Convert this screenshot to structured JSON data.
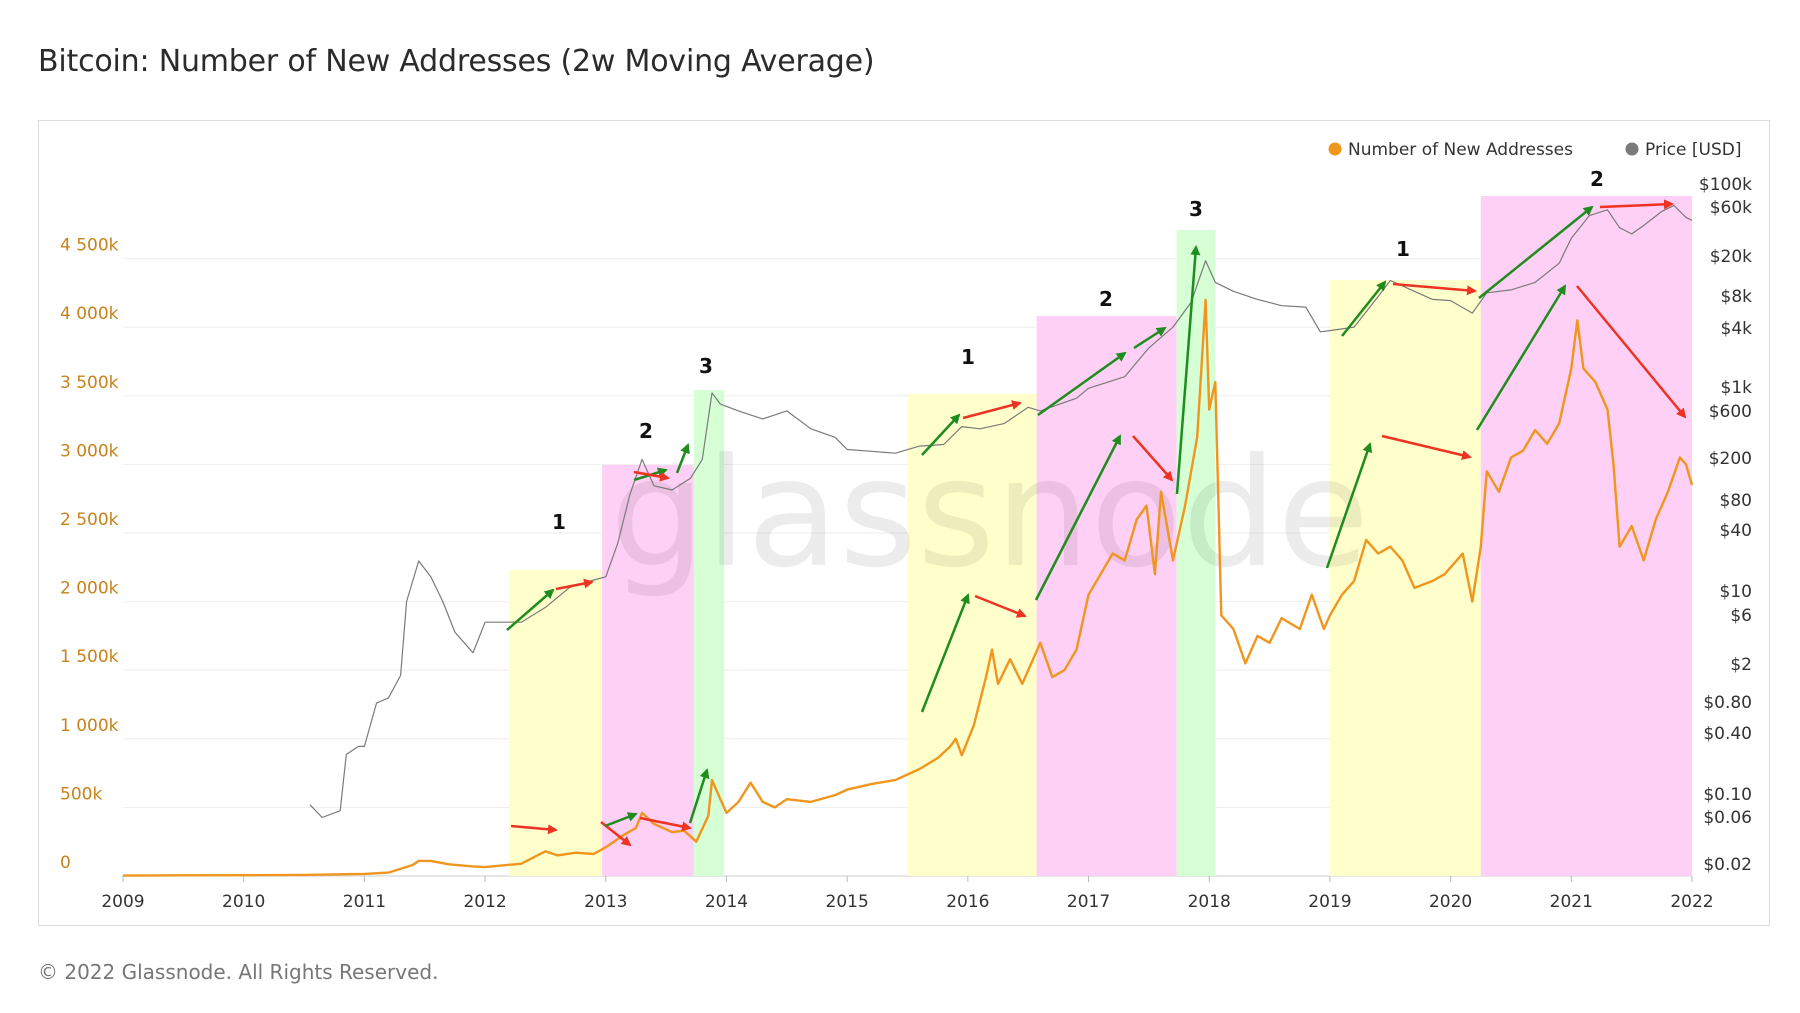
{
  "title": "Bitcoin: Number of New Addresses (2w Moving Average)",
  "footer": "© 2022 Glassnode. All Rights Reserved.",
  "watermark": "glassnode",
  "colors": {
    "addresses": "#f0961e",
    "price": "#7a7a7a",
    "left_axis": "#c8821a",
    "phase1": "#ffffcc",
    "phase2": "#ffd0f5",
    "phase3": "#d6ffd6",
    "arrow_up": "#1e8c1e",
    "arrow_down": "#ee3322"
  },
  "chart_data": {
    "type": "line",
    "title": "Bitcoin: Number of New Addresses (2w Moving Average)",
    "x_range": [
      2009,
      2022
    ],
    "x_ticks": [
      "2009",
      "2010",
      "2011",
      "2012",
      "2013",
      "2014",
      "2015",
      "2016",
      "2017",
      "2018",
      "2019",
      "2020",
      "2021",
      "2022"
    ],
    "y_left": {
      "range": [
        0,
        5000000
      ],
      "ticks": [
        {
          "value": 0,
          "label": "0"
        },
        {
          "value": 500000,
          "label": "500k"
        },
        {
          "value": 1000000,
          "label": "1 000k"
        },
        {
          "value": 1500000,
          "label": "1 500k"
        },
        {
          "value": 2000000,
          "label": "2 000k"
        },
        {
          "value": 2500000,
          "label": "2 500k"
        },
        {
          "value": 3000000,
          "label": "3 000k"
        },
        {
          "value": 3500000,
          "label": "3 500k"
        },
        {
          "value": 4000000,
          "label": "4 000k"
        },
        {
          "value": 4500000,
          "label": "4 500k"
        }
      ]
    },
    "y_right": {
      "scale": "log",
      "range": [
        0.02,
        100000
      ],
      "ticks": [
        {
          "value": 100000,
          "label": "$100k"
        },
        {
          "value": 60000,
          "label": "$60k"
        },
        {
          "value": 20000,
          "label": "$20k"
        },
        {
          "value": 8000,
          "label": "$8k"
        },
        {
          "value": 4000,
          "label": "$4k"
        },
        {
          "value": 1000,
          "label": "$1k"
        },
        {
          "value": 600,
          "label": "$600"
        },
        {
          "value": 200,
          "label": "$200"
        },
        {
          "value": 80,
          "label": "$80"
        },
        {
          "value": 40,
          "label": "$40"
        },
        {
          "value": 10,
          "label": "$10"
        },
        {
          "value": 6,
          "label": "$6"
        },
        {
          "value": 2,
          "label": "$2"
        },
        {
          "value": 0.8,
          "label": "$0.80"
        },
        {
          "value": 0.4,
          "label": "$0.40"
        },
        {
          "value": 0.1,
          "label": "$0.10"
        },
        {
          "value": 0.06,
          "label": "$0.06"
        },
        {
          "value": 0.02,
          "label": "$0.02"
        }
      ]
    },
    "legend": [
      {
        "name": "Number of New Addresses",
        "color": "#f0961e"
      },
      {
        "name": "Price [USD]",
        "color": "#7a7a7a"
      }
    ],
    "series": [
      {
        "name": "Number of New Addresses",
        "axis": "left",
        "points": [
          [
            2009.0,
            3000
          ],
          [
            2009.5,
            5000
          ],
          [
            2010.0,
            6000
          ],
          [
            2010.5,
            8000
          ],
          [
            2010.9,
            14000
          ],
          [
            2011.0,
            15000
          ],
          [
            2011.2,
            25000
          ],
          [
            2011.4,
            80000
          ],
          [
            2011.45,
            110000
          ],
          [
            2011.55,
            110000
          ],
          [
            2011.7,
            85000
          ],
          [
            2011.9,
            70000
          ],
          [
            2012.0,
            65000
          ],
          [
            2012.3,
            90000
          ],
          [
            2012.5,
            180000
          ],
          [
            2012.6,
            150000
          ],
          [
            2012.75,
            170000
          ],
          [
            2012.9,
            160000
          ],
          [
            2013.0,
            210000
          ],
          [
            2013.15,
            300000
          ],
          [
            2013.25,
            350000
          ],
          [
            2013.3,
            460000
          ],
          [
            2013.4,
            380000
          ],
          [
            2013.55,
            320000
          ],
          [
            2013.65,
            330000
          ],
          [
            2013.75,
            250000
          ],
          [
            2013.85,
            440000
          ],
          [
            2013.88,
            700000
          ],
          [
            2013.95,
            560000
          ],
          [
            2014.0,
            460000
          ],
          [
            2014.1,
            540000
          ],
          [
            2014.2,
            680000
          ],
          [
            2014.3,
            540000
          ],
          [
            2014.4,
            500000
          ],
          [
            2014.5,
            560000
          ],
          [
            2014.7,
            540000
          ],
          [
            2014.9,
            590000
          ],
          [
            2015.0,
            630000
          ],
          [
            2015.2,
            670000
          ],
          [
            2015.4,
            700000
          ],
          [
            2015.6,
            780000
          ],
          [
            2015.75,
            860000
          ],
          [
            2015.85,
            940000
          ],
          [
            2015.9,
            1000000
          ],
          [
            2015.95,
            880000
          ],
          [
            2016.05,
            1100000
          ],
          [
            2016.15,
            1450000
          ],
          [
            2016.2,
            1650000
          ],
          [
            2016.25,
            1400000
          ],
          [
            2016.35,
            1580000
          ],
          [
            2016.45,
            1400000
          ],
          [
            2016.6,
            1700000
          ],
          [
            2016.7,
            1450000
          ],
          [
            2016.8,
            1500000
          ],
          [
            2016.9,
            1650000
          ],
          [
            2017.0,
            2050000
          ],
          [
            2017.1,
            2200000
          ],
          [
            2017.2,
            2350000
          ],
          [
            2017.3,
            2300000
          ],
          [
            2017.4,
            2600000
          ],
          [
            2017.48,
            2700000
          ],
          [
            2017.55,
            2200000
          ],
          [
            2017.6,
            2800000
          ],
          [
            2017.7,
            2300000
          ],
          [
            2017.8,
            2700000
          ],
          [
            2017.9,
            3200000
          ],
          [
            2017.97,
            4200000
          ],
          [
            2018.0,
            3400000
          ],
          [
            2018.05,
            3600000
          ],
          [
            2018.1,
            1900000
          ],
          [
            2018.2,
            1800000
          ],
          [
            2018.3,
            1550000
          ],
          [
            2018.4,
            1750000
          ],
          [
            2018.5,
            1700000
          ],
          [
            2018.6,
            1880000
          ],
          [
            2018.75,
            1800000
          ],
          [
            2018.85,
            2050000
          ],
          [
            2018.95,
            1800000
          ],
          [
            2019.0,
            1900000
          ],
          [
            2019.1,
            2050000
          ],
          [
            2019.2,
            2150000
          ],
          [
            2019.3,
            2450000
          ],
          [
            2019.4,
            2350000
          ],
          [
            2019.5,
            2400000
          ],
          [
            2019.6,
            2300000
          ],
          [
            2019.7,
            2100000
          ],
          [
            2019.85,
            2150000
          ],
          [
            2019.95,
            2200000
          ],
          [
            2020.1,
            2350000
          ],
          [
            2020.18,
            2000000
          ],
          [
            2020.25,
            2400000
          ],
          [
            2020.3,
            2950000
          ],
          [
            2020.4,
            2800000
          ],
          [
            2020.5,
            3050000
          ],
          [
            2020.6,
            3100000
          ],
          [
            2020.7,
            3250000
          ],
          [
            2020.8,
            3150000
          ],
          [
            2020.9,
            3300000
          ],
          [
            2021.0,
            3700000
          ],
          [
            2021.05,
            4050000
          ],
          [
            2021.1,
            3700000
          ],
          [
            2021.2,
            3600000
          ],
          [
            2021.3,
            3400000
          ],
          [
            2021.35,
            3000000
          ],
          [
            2021.4,
            2400000
          ],
          [
            2021.5,
            2550000
          ],
          [
            2021.6,
            2300000
          ],
          [
            2021.7,
            2600000
          ],
          [
            2021.8,
            2800000
          ],
          [
            2021.9,
            3050000
          ],
          [
            2021.95,
            3000000
          ],
          [
            2022.0,
            2850000
          ]
        ]
      },
      {
        "name": "Price [USD]",
        "axis": "right",
        "points": [
          [
            2010.55,
            0.08
          ],
          [
            2010.65,
            0.06
          ],
          [
            2010.8,
            0.07
          ],
          [
            2010.85,
            0.25
          ],
          [
            2010.95,
            0.3
          ],
          [
            2011.0,
            0.3
          ],
          [
            2011.1,
            0.8
          ],
          [
            2011.2,
            0.9
          ],
          [
            2011.3,
            1.5
          ],
          [
            2011.35,
            8
          ],
          [
            2011.45,
            20
          ],
          [
            2011.55,
            14
          ],
          [
            2011.65,
            8
          ],
          [
            2011.75,
            4
          ],
          [
            2011.9,
            2.5
          ],
          [
            2012.0,
            5
          ],
          [
            2012.3,
            5
          ],
          [
            2012.5,
            7
          ],
          [
            2012.7,
            11
          ],
          [
            2012.9,
            13
          ],
          [
            2013.0,
            14
          ],
          [
            2013.1,
            30
          ],
          [
            2013.2,
            90
          ],
          [
            2013.3,
            200
          ],
          [
            2013.4,
            110
          ],
          [
            2013.55,
            100
          ],
          [
            2013.7,
            130
          ],
          [
            2013.8,
            200
          ],
          [
            2013.88,
            900
          ],
          [
            2013.95,
            700
          ],
          [
            2014.1,
            600
          ],
          [
            2014.3,
            500
          ],
          [
            2014.5,
            600
          ],
          [
            2014.7,
            400
          ],
          [
            2014.9,
            330
          ],
          [
            2015.0,
            250
          ],
          [
            2015.2,
            240
          ],
          [
            2015.4,
            230
          ],
          [
            2015.6,
            270
          ],
          [
            2015.8,
            280
          ],
          [
            2015.95,
            420
          ],
          [
            2016.1,
            400
          ],
          [
            2016.3,
            450
          ],
          [
            2016.5,
            650
          ],
          [
            2016.6,
            600
          ],
          [
            2016.9,
            800
          ],
          [
            2017.0,
            1000
          ],
          [
            2017.3,
            1300
          ],
          [
            2017.5,
            2500
          ],
          [
            2017.7,
            4000
          ],
          [
            2017.85,
            7000
          ],
          [
            2017.97,
            18000
          ],
          [
            2018.05,
            11000
          ],
          [
            2018.2,
            9000
          ],
          [
            2018.4,
            7500
          ],
          [
            2018.6,
            6500
          ],
          [
            2018.8,
            6300
          ],
          [
            2018.92,
            3600
          ],
          [
            2019.0,
            3700
          ],
          [
            2019.2,
            4000
          ],
          [
            2019.4,
            8000
          ],
          [
            2019.5,
            11500
          ],
          [
            2019.7,
            9000
          ],
          [
            2019.85,
            7500
          ],
          [
            2020.0,
            7300
          ],
          [
            2020.18,
            5500
          ],
          [
            2020.3,
            8700
          ],
          [
            2020.5,
            9300
          ],
          [
            2020.7,
            11000
          ],
          [
            2020.9,
            17000
          ],
          [
            2021.0,
            30000
          ],
          [
            2021.15,
            50000
          ],
          [
            2021.3,
            57000
          ],
          [
            2021.4,
            38000
          ],
          [
            2021.5,
            33000
          ],
          [
            2021.6,
            40000
          ],
          [
            2021.75,
            55000
          ],
          [
            2021.85,
            63000
          ],
          [
            2021.95,
            48000
          ],
          [
            2022.0,
            45000
          ]
        ]
      }
    ],
    "phases": [
      {
        "label": "1",
        "start": 2012.2,
        "end": 2012.97,
        "type": "phase1"
      },
      {
        "label": "2",
        "start": 2012.97,
        "end": 2013.73,
        "type": "phase2"
      },
      {
        "label": "3",
        "start": 2013.73,
        "end": 2013.98,
        "type": "phase3"
      },
      {
        "label": "1",
        "start": 2015.5,
        "end": 2016.57,
        "type": "phase1"
      },
      {
        "label": "2",
        "start": 2016.57,
        "end": 2017.73,
        "type": "phase2"
      },
      {
        "label": "3",
        "start": 2017.73,
        "end": 2018.05,
        "type": "phase3"
      },
      {
        "label": "1",
        "start": 2019.0,
        "end": 2020.25,
        "type": "phase1"
      },
      {
        "label": "2",
        "start": 2020.25,
        "end": 2022.0,
        "type": "phase2"
      }
    ]
  }
}
